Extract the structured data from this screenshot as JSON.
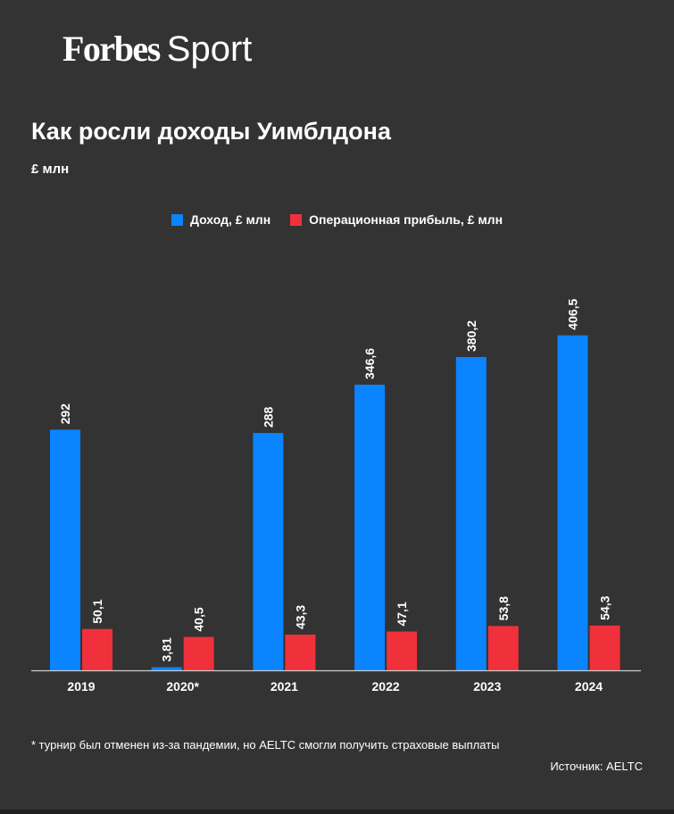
{
  "brand": {
    "forbes": "Forbes",
    "sport": "Sport"
  },
  "footnote": "* турнир был отменен из-за пандемии, но AELTC смогли получить страховые выплаты",
  "source": "Источник: AELTC",
  "colors": {
    "revenue": "#0a84ff",
    "profit": "#f0303a",
    "background": "#333333",
    "axis": "#cccccc"
  },
  "chart_data": {
    "type": "bar",
    "title": "Как росли доходы Уимблдона",
    "subtitle": "£ млн",
    "categories": [
      "2019",
      "2020*",
      "2021",
      "2022",
      "2023",
      "2024"
    ],
    "series": [
      {
        "name": "Доход, £ млн",
        "values": [
          292,
          3.81,
          288,
          346.6,
          380.2,
          406.5
        ],
        "labels": [
          "292",
          "3,81",
          "288",
          "346,6",
          "380,2",
          "406,5"
        ]
      },
      {
        "name": "Операционная прибыль, £ млн",
        "values": [
          50.1,
          40.5,
          43.3,
          47.1,
          53.8,
          54.3
        ],
        "labels": [
          "50,1",
          "40,5",
          "43,3",
          "47,1",
          "53,8",
          "54,3"
        ]
      }
    ],
    "ylim": [
      0,
      430
    ],
    "grid": false,
    "legend": "top-center",
    "data_label_orientation": "vertical"
  }
}
